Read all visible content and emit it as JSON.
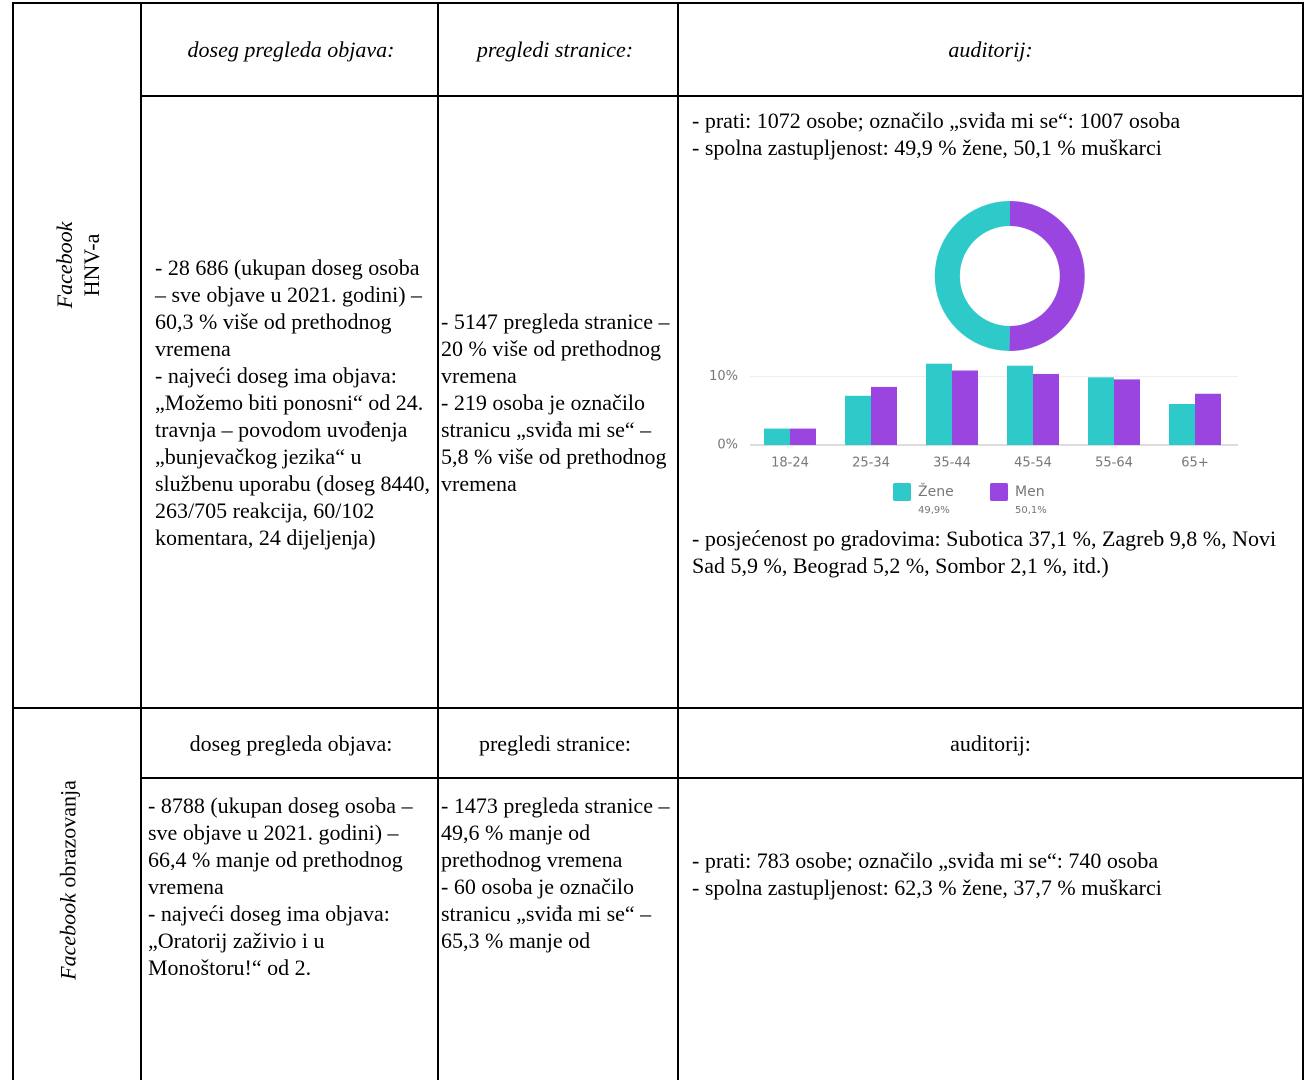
{
  "table": {
    "rows": [
      {
        "platform": [
          "Facebook",
          "HNV-a"
        ],
        "headers": [
          "doseg pregleda objava:",
          "pregledi stranice:",
          "auditorij:"
        ],
        "reach": [
          "- 28 686 (ukupan doseg osoba – sve objave u 2021. godini) – 60,3 % više od prethodnog vremena",
          "- najveći doseg ima objava: „Možemo biti ponosni“ od 24. travnja – povodom uvođenja „bunjevačkog jezika“ u službenu uporabu (doseg 8440, 263/705 reakcija, 60/102 komentara, 24 dijeljenja)"
        ],
        "page_views": [
          "- 5147 pregleda stranice – 20 % više od prethodnog vremena",
          "- 219 osoba je označilo stranicu „sviđa mi se“ – 5,8 % više od prethodnog vremena"
        ],
        "audience": [
          "- prati: 1072 osobe; označilo „sviđa mi se“: 1007 osoba",
          "- spolna zastupljenost: 49,9 % žene, 50,1 % muškarci"
        ],
        "audience_after": [
          "- posjećenost po gradovima: Subotica 37,1 %, Zagreb 9,8 %, Novi Sad 5,9 %, Beograd 5,2 %, Sombor 2,1 %, itd.)"
        ],
        "chart": {
          "type": "bar",
          "categories": [
            "18-24",
            "25-34",
            "35-44",
            "45-54",
            "55-64",
            "65+"
          ],
          "series": [
            {
              "name": "Žene",
              "color": "#2ec9c9",
              "values": [
                2.4,
                7.2,
                11.9,
                11.6,
                9.9,
                6.0
              ]
            },
            {
              "name": "Men",
              "color": "#9b45e0",
              "values": [
                2.4,
                8.5,
                10.9,
                10.4,
                9.6,
                7.5
              ]
            }
          ],
          "share": [
            49.9,
            50.1
          ],
          "share_labels": [
            "49,9%",
            "50,1%"
          ],
          "ylim": [
            0,
            12
          ],
          "yticks": [
            {
              "value": 0,
              "label": "0%"
            },
            {
              "value": 10,
              "label": "10%"
            }
          ],
          "grid": true
        }
      },
      {
        "platform": [
          "Facebook",
          "obrazovanja"
        ],
        "headers": [
          "doseg pregleda objava:",
          "pregledi stranice:",
          "auditorij:"
        ],
        "reach": [
          "- 8788 (ukupan doseg osoba – sve objave u 2021. godini) – 66,4 % manje od prethodnog vremena",
          "- najveći doseg ima objava: „Oratorij zaživio i u Monoštoru!“ od 2."
        ],
        "page_views": [
          "- 1473 pregleda stranice – 49,6 % manje od prethodnog vremena",
          "- 60 osoba je označilo stranicu „sviđa mi se“ – 65,3 % manje od"
        ],
        "audience": [
          "- prati: 783 osobe; označilo „sviđa mi se“: 740 osoba",
          "- spolna zastupljenost: 62,3 % žene, 37,7 % muškarci"
        ]
      }
    ]
  }
}
